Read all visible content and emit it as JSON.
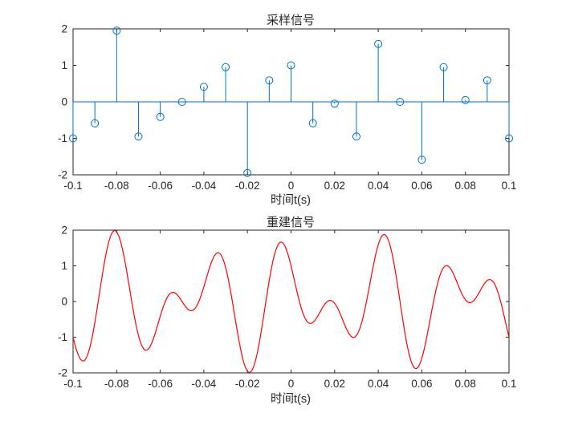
{
  "figure": {
    "background": "#FFFFFF",
    "axis_color": "#262626",
    "tick_label_color": "#262626"
  },
  "chart_data": [
    {
      "type": "stem",
      "title": "采样信号",
      "xlabel": "时间t(s)",
      "ylabel": "",
      "color": "#0072BD",
      "marker": "open-circle",
      "grid": false,
      "xlim": [
        -0.1,
        0.1
      ],
      "ylim": [
        -2,
        2
      ],
      "xticks": [
        -0.1,
        -0.08,
        -0.06,
        -0.04,
        -0.02,
        0,
        0.02,
        0.04,
        0.06,
        0.08,
        0.1
      ],
      "xtick_labels": [
        "-0.1",
        "-0.08",
        "-0.06",
        "-0.04",
        "-0.02",
        "0",
        "0.02",
        "0.04",
        "0.06",
        "0.08",
        "0.1"
      ],
      "yticks": [
        -2,
        -1,
        0,
        1,
        2
      ],
      "ytick_labels": [
        "-2",
        "-1",
        "0",
        "1",
        "2"
      ],
      "baseline": 0,
      "sample_rate_hz": 100,
      "x": [
        -0.1,
        -0.09,
        -0.08,
        -0.07,
        -0.06,
        -0.05,
        -0.04,
        -0.03,
        -0.02,
        -0.01,
        0,
        0.01,
        0.02,
        0.03,
        0.04,
        0.05,
        0.06,
        0.07,
        0.08,
        0.09,
        0.1
      ],
      "values": [
        -1,
        -0.588,
        1.951,
        -0.951,
        -0.412,
        0,
        0.412,
        0.951,
        -1.951,
        0.588,
        1,
        -0.588,
        -0.049,
        -0.951,
        1.588,
        0,
        -1.588,
        0.951,
        0.049,
        0.588,
        -1
      ]
    },
    {
      "type": "line",
      "title": "重建信号",
      "xlabel": "时间t(s)",
      "ylabel": "",
      "color": "#FF0000",
      "grid": false,
      "xlim": [
        -0.1,
        0.1
      ],
      "ylim": [
        -2,
        2
      ],
      "xticks": [
        -0.1,
        -0.08,
        -0.06,
        -0.04,
        -0.02,
        0,
        0.02,
        0.04,
        0.06,
        0.08,
        0.1
      ],
      "xtick_labels": [
        "-0.1",
        "-0.08",
        "-0.06",
        "-0.04",
        "-0.02",
        "0",
        "0.02",
        "0.04",
        "0.06",
        "0.08",
        "0.1"
      ],
      "yticks": [
        -2,
        -1,
        0,
        1,
        2
      ],
      "ytick_labels": [
        "-2",
        "-1",
        "0",
        "1",
        "2"
      ],
      "signal_formula": "cos(2*pi*25*t) - sin(2*pi*40*t)",
      "components": [
        {
          "func": "cos",
          "freq_hz": 25,
          "amplitude": 1
        },
        {
          "func": "sin",
          "freq_hz": 40,
          "amplitude": -1
        }
      ],
      "samples_per_plot": 800
    }
  ]
}
